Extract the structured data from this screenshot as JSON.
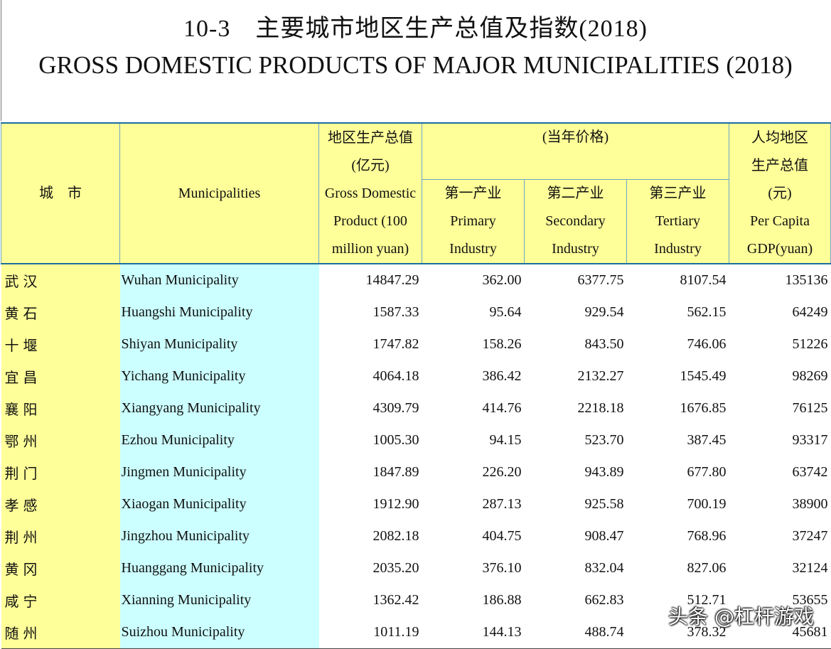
{
  "title": {
    "cn": "10-3　主要城市地区生产总值及指数(2018)",
    "en": "GROSS DOMESTIC PRODUCTS OF MAJOR MUNICIPALITIES (2018)"
  },
  "header": {
    "city_cn": "城　市",
    "city_en": "Municipalities",
    "gdp_cn": [
      "地区生产总值",
      "(亿元)"
    ],
    "gdp_en": [
      "Gross Domestic",
      "Product (100",
      "million yuan)"
    ],
    "price_note": "(当年价格)",
    "primary": [
      "第一产业",
      "Primary",
      "Industry"
    ],
    "secondary": [
      "第二产业",
      "Secondary",
      "Industry"
    ],
    "tertiary": [
      "第三产业",
      "Tertiary",
      "Industry"
    ],
    "per_capita": [
      "人均地区",
      "生产总值",
      "(元)",
      "Per Capita",
      "GDP(yuan)"
    ]
  },
  "rows": [
    {
      "cn": "武汉",
      "en": "Wuhan Municipality",
      "gdp": "14847.29",
      "primary": "362.00",
      "secondary": "6377.75",
      "tertiary": "8107.54",
      "per_capita": "135136"
    },
    {
      "cn": "黄石",
      "en": "Huangshi Municipality",
      "gdp": "1587.33",
      "primary": "95.64",
      "secondary": "929.54",
      "tertiary": "562.15",
      "per_capita": "64249"
    },
    {
      "cn": "十堰",
      "en": "Shiyan Municipality",
      "gdp": "1747.82",
      "primary": "158.26",
      "secondary": "843.50",
      "tertiary": "746.06",
      "per_capita": "51226"
    },
    {
      "cn": "宜昌",
      "en": "Yichang Municipality",
      "gdp": "4064.18",
      "primary": "386.42",
      "secondary": "2132.27",
      "tertiary": "1545.49",
      "per_capita": "98269"
    },
    {
      "cn": "襄阳",
      "en": "Xiangyang Municipality",
      "gdp": "4309.79",
      "primary": "414.76",
      "secondary": "2218.18",
      "tertiary": "1676.85",
      "per_capita": "76125"
    },
    {
      "cn": "鄂州",
      "en": "Ezhou Municipality",
      "gdp": "1005.30",
      "primary": "94.15",
      "secondary": "523.70",
      "tertiary": "387.45",
      "per_capita": "93317"
    },
    {
      "cn": "荆门",
      "en": "Jingmen Municipality",
      "gdp": "1847.89",
      "primary": "226.20",
      "secondary": "943.89",
      "tertiary": "677.80",
      "per_capita": "63742"
    },
    {
      "cn": "孝感",
      "en": "Xiaogan Municipality",
      "gdp": "1912.90",
      "primary": "287.13",
      "secondary": "925.58",
      "tertiary": "700.19",
      "per_capita": "38900"
    },
    {
      "cn": "荆州",
      "en": "Jingzhou Municipality",
      "gdp": "2082.18",
      "primary": "404.75",
      "secondary": "908.47",
      "tertiary": "768.96",
      "per_capita": "37247"
    },
    {
      "cn": "黄冈",
      "en": "Huanggang Municipality",
      "gdp": "2035.20",
      "primary": "376.10",
      "secondary": "832.04",
      "tertiary": "827.06",
      "per_capita": "32124"
    },
    {
      "cn": "咸宁",
      "en": "Xianning Municipality",
      "gdp": "1362.42",
      "primary": "186.88",
      "secondary": "662.83",
      "tertiary": "512.71",
      "per_capita": "53655"
    },
    {
      "cn": "随州",
      "en": "Suizhou Municipality",
      "gdp": "1011.19",
      "primary": "144.13",
      "secondary": "488.74",
      "tertiary": "378.32",
      "per_capita": "45681"
    }
  ],
  "watermark": "头条 @杠杆游戏"
}
